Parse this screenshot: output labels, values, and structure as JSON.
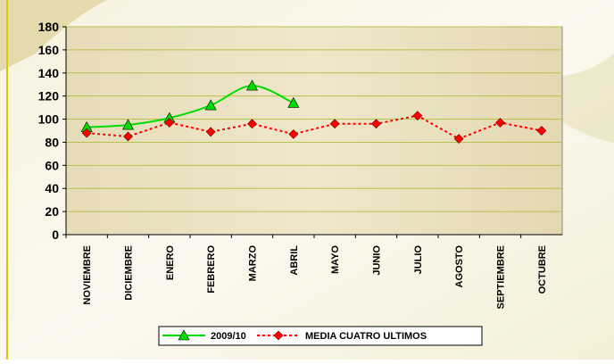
{
  "chart_data": {
    "type": "line",
    "categories": [
      "NOVIEMBRE",
      "DICIEMBRE",
      "ENERO",
      "FEBRERO",
      "MARZO",
      "ABRIL",
      "MAYO",
      "JUNIO",
      "JULIO",
      "AGOSTO",
      "SEPTIEMBRE",
      "OCTUBRE"
    ],
    "series": [
      {
        "name": "2009/10",
        "color": "#00dd00",
        "marker": "triangle",
        "dash": "solid",
        "smooth": true,
        "values": [
          93,
          95,
          101,
          112,
          129,
          114,
          null,
          null,
          null,
          null,
          null,
          null
        ]
      },
      {
        "name": "MEDIA CUATRO ULTIMOS",
        "color": "#ff0000",
        "marker": "diamond",
        "dash": "dotted",
        "smooth": false,
        "values": [
          88,
          85,
          97,
          89,
          96,
          87,
          96,
          96,
          103,
          83,
          97,
          90
        ]
      }
    ],
    "ylim": [
      0,
      180
    ],
    "yticks": [
      0,
      20,
      40,
      60,
      80,
      100,
      120,
      140,
      160,
      180
    ],
    "grid": true
  }
}
